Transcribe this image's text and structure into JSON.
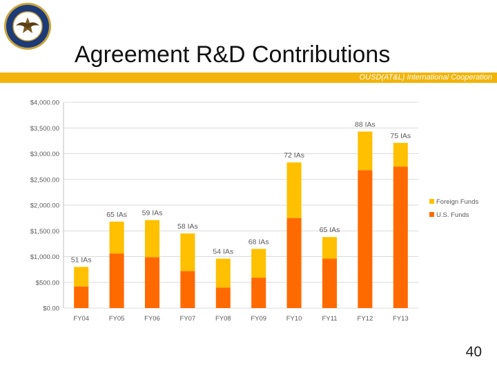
{
  "slide": {
    "title": "Agreement R&D Contributions",
    "subtitle_band": "OUSD(AT&L) International Cooperation",
    "page_number": "40"
  },
  "colors": {
    "band": "#f2b40a",
    "foreign_funds": "#ffc000",
    "us_funds": "#ff6a00",
    "gridline": "#d9d9d9",
    "seal_blue": "#1d3b77"
  },
  "chart_data": {
    "type": "bar",
    "stacked": true,
    "categories": [
      "FY04",
      "FY05",
      "FY06",
      "FY07",
      "FY08",
      "FY09",
      "FY10",
      "FY11",
      "FY12",
      "FY13"
    ],
    "series": [
      {
        "name": "U.S. Funds",
        "color": "#ff6a00",
        "values": [
          420,
          1060,
          990,
          720,
          400,
          590,
          1750,
          960,
          2680,
          2750
        ]
      },
      {
        "name": "Foreign Funds",
        "color": "#ffc000",
        "values": [
          380,
          620,
          720,
          730,
          560,
          560,
          1080,
          420,
          750,
          460
        ]
      }
    ],
    "bar_labels": [
      "51 IAs",
      "65 IAs",
      "59 IAs",
      "58 IAs",
      "54 IAs",
      "68 IAs",
      "72 IAs",
      "65 IAs",
      "88 IAs",
      "75 IAs"
    ],
    "y_ticks": [
      "$0.00",
      "$500.00",
      "$1,000.00",
      "$1,500.00",
      "$2,000.00",
      "$2,500.00",
      "$3,000.00",
      "$3,500.00",
      "$4,000.00"
    ],
    "ylim": [
      0,
      4000
    ],
    "grid": true,
    "legend_position": "right",
    "legend": [
      "Foreign Funds",
      "U.S. Funds"
    ]
  }
}
